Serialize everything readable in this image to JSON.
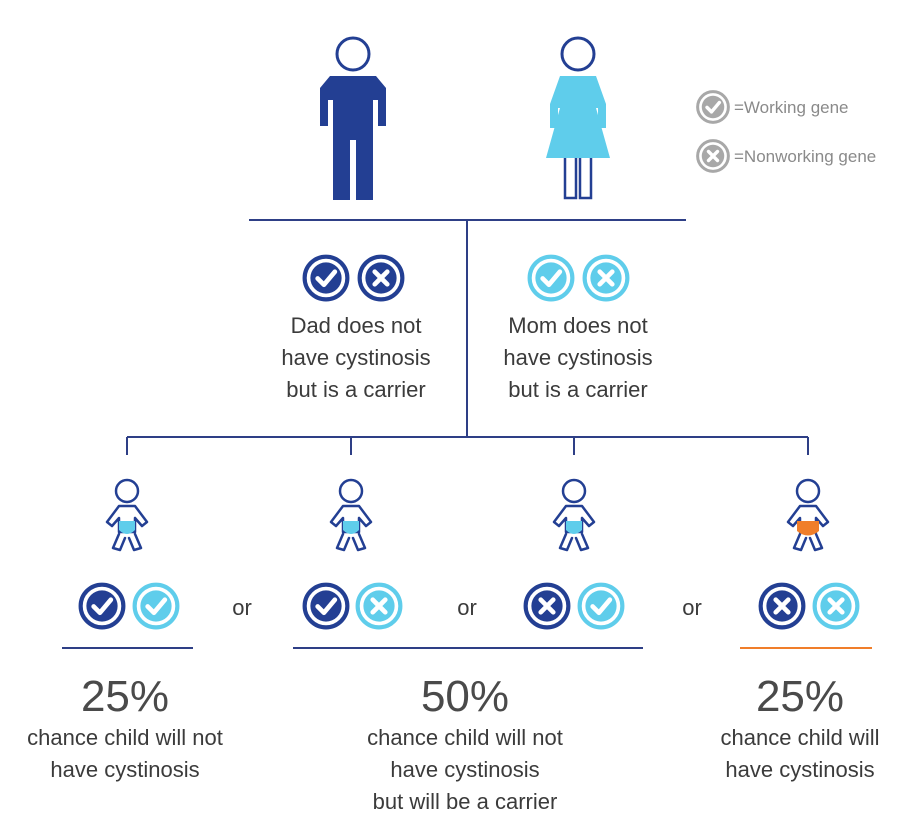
{
  "legend": {
    "working": "=Working gene",
    "nonworking": "=Nonworking gene"
  },
  "parents": {
    "dad_desc": [
      "Dad does not",
      "have cystinosis",
      "but is a carrier"
    ],
    "mom_desc": [
      "Mom does not",
      "have cystinosis",
      "but is a carrier"
    ]
  },
  "or_label": "or",
  "outcomes": [
    {
      "percent": "25%",
      "desc": [
        "chance child will not",
        "have cystinosis"
      ]
    },
    {
      "percent": "50%",
      "desc": [
        "chance child will not",
        "have cystinosis",
        "but will be a carrier"
      ]
    },
    {
      "percent": "25%",
      "desc": [
        "chance child will",
        "have cystinosis"
      ]
    }
  ],
  "colors": {
    "dark_blue": "#233f93",
    "light_blue": "#5fcdeb",
    "orange": "#f07e2a",
    "line": "#2e3f86",
    "gray": "#a8a8a8",
    "text": "#3b3b3b"
  }
}
